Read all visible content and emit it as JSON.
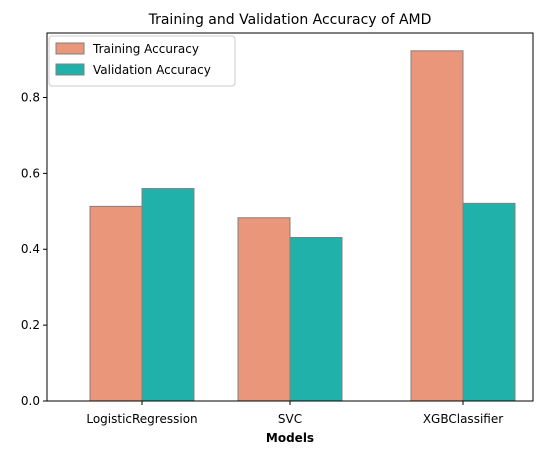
{
  "chart_data": {
    "type": "bar",
    "title": "Training and Validation Accuracy of AMD",
    "xlabel": "Models",
    "ylabel": "",
    "categories": [
      "LogisticRegression",
      "SVC",
      "XGBClassifier"
    ],
    "series": [
      {
        "name": "Training Accuracy",
        "values": [
          0.513,
          0.483,
          0.923
        ],
        "color": "#e9967a"
      },
      {
        "name": "Validation Accuracy",
        "values": [
          0.56,
          0.431,
          0.521
        ],
        "color": "#20b2aa"
      }
    ],
    "ylim": [
      0,
      0.97
    ],
    "yticks": [
      0.0,
      0.2,
      0.4,
      0.6,
      0.8
    ],
    "ytick_labels": [
      "0.0",
      "0.2",
      "0.4",
      "0.6",
      "0.8"
    ],
    "grid": false,
    "legend_position": "top-left",
    "bar_edge_color": "#808080"
  }
}
